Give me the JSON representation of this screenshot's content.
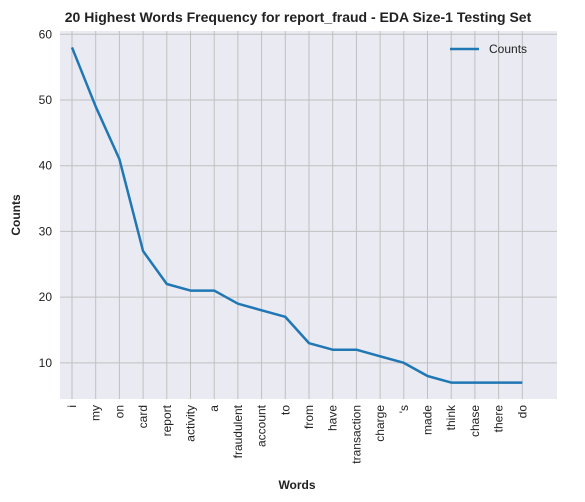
{
  "chart_data": {
    "type": "line",
    "title": "20 Highest Words Frequency for report_fraud - EDA Size-1 Testing Set",
    "xlabel": "Words",
    "ylabel": "Counts",
    "categories": [
      "i",
      "my",
      "on",
      "card",
      "report",
      "activity",
      "a",
      "fraudulent",
      "account",
      "to",
      "from",
      "have",
      "transaction",
      "charge",
      "'s",
      "made",
      "think",
      "chase",
      "there",
      "do"
    ],
    "series": [
      {
        "name": "Counts",
        "values": [
          58,
          49,
          41,
          27,
          22,
          21,
          21,
          19,
          18,
          17,
          13,
          12,
          12,
          11,
          10,
          8,
          7,
          7,
          7,
          7
        ]
      }
    ],
    "ylim": [
      4.5,
      60.5
    ],
    "yticks": [
      10,
      20,
      30,
      40,
      50,
      60
    ],
    "grid": true,
    "legend": "top-right",
    "colors": {
      "line": "#1f77b4",
      "plot_background": "#eaeaf2",
      "grid": "#c0c0c0"
    }
  }
}
